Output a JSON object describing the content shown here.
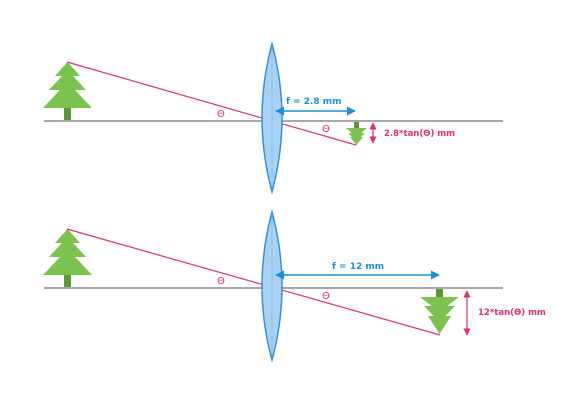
{
  "colors": {
    "axis": "#a8a8a8",
    "ray": "#e0326a",
    "tree": "#7cc24e",
    "trunk": "#5a9a36",
    "lens_fill": "#a9d2f2",
    "lens_stroke": "#3a8fd6",
    "focal_arrow": "#1a8fdc",
    "theta": "#e0326a"
  },
  "icons": {
    "object": "tree-icon",
    "image": "inverted-tree-icon",
    "lens": "convex-lens-icon"
  },
  "panels": [
    {
      "focal_label": "f = 2.8 mm",
      "theta_left": "Θ",
      "theta_right": "Θ",
      "image_label": "2.8*tan(Θ) mm"
    },
    {
      "focal_label": "f = 12 mm",
      "theta_left": "Θ",
      "theta_right": "Θ",
      "image_label": "12*tan(Θ) mm"
    }
  ]
}
